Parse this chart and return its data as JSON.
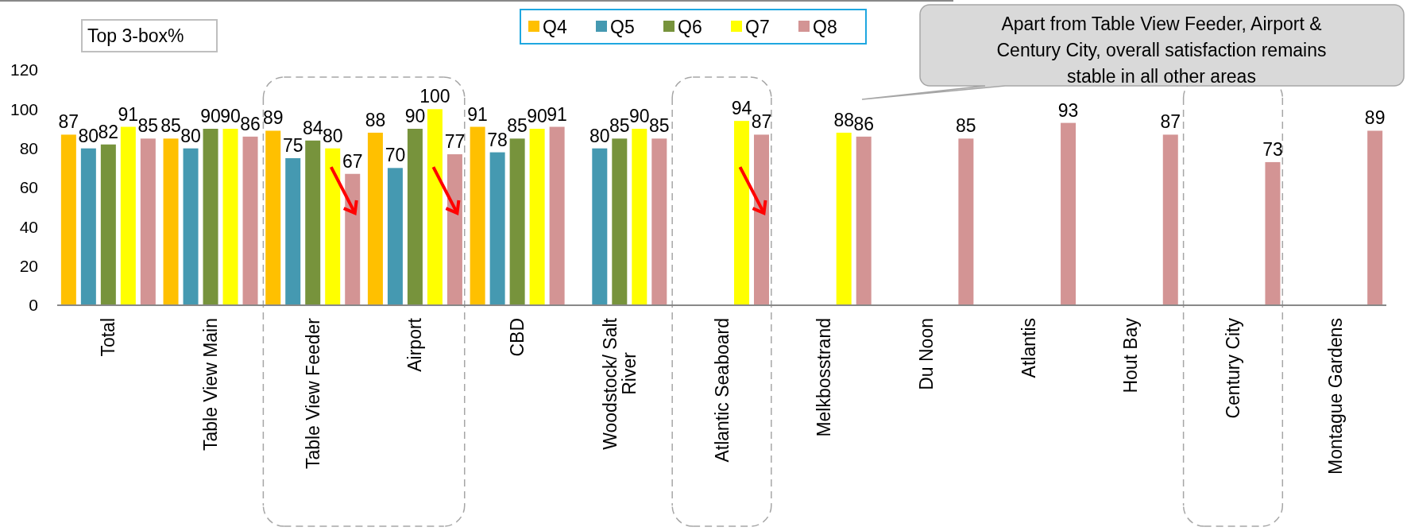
{
  "chart_data": {
    "type": "bar",
    "categories": [
      "Total",
      "Table View Main",
      "Table View Feeder",
      "Airport",
      "CBD",
      "Woodstock/ Salt River",
      "Atlantic Seaboard",
      "Melkbosstrand",
      "Du Noon",
      "Atlantis",
      "Hout Bay",
      "Century City",
      "Montague Gardens"
    ],
    "series": [
      {
        "name": "Q4",
        "color": "#ffc000",
        "values": [
          87,
          85,
          89,
          88,
          91,
          null,
          null,
          null,
          null,
          null,
          null,
          null,
          null
        ]
      },
      {
        "name": "Q5",
        "color": "#4599b1",
        "values": [
          80,
          80,
          75,
          70,
          78,
          80,
          null,
          null,
          null,
          null,
          null,
          null,
          null
        ]
      },
      {
        "name": "Q6",
        "color": "#77933c",
        "values": [
          82,
          90,
          84,
          90,
          85,
          85,
          null,
          null,
          null,
          null,
          null,
          null,
          null
        ]
      },
      {
        "name": "Q7",
        "color": "#ffff00",
        "values": [
          91,
          90,
          80,
          100,
          90,
          90,
          94,
          88,
          null,
          null,
          null,
          null,
          null
        ]
      },
      {
        "name": "Q8",
        "color": "#d39494",
        "values": [
          85,
          86,
          67,
          77,
          91,
          85,
          87,
          86,
          85,
          93,
          87,
          73,
          89
        ]
      }
    ],
    "ylim": [
      0,
      120
    ],
    "yticks": [
      0,
      20,
      40,
      60,
      80,
      100,
      120
    ],
    "data_labels": true,
    "legend": "top",
    "grid": false,
    "annotations": [
      "Top 3-box%",
      "Apart from Table View Feeder, Airport & Century City, overall satisfaction remains stable in all other areas"
    ]
  }
}
